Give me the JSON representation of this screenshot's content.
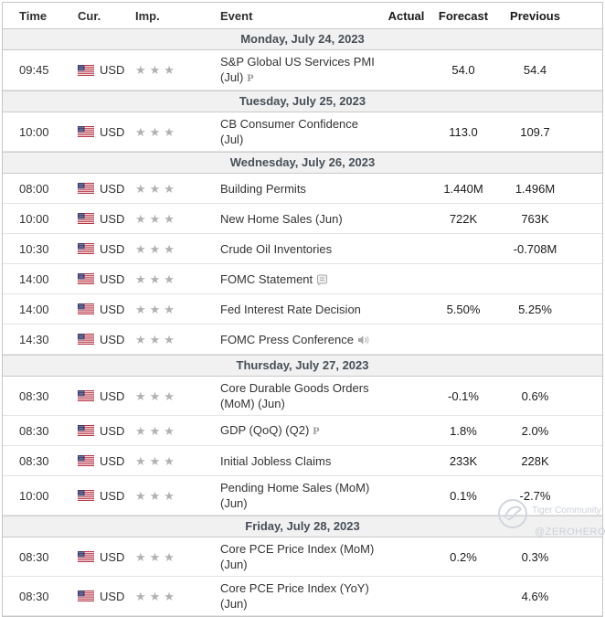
{
  "table": {
    "columns": {
      "time": "Time",
      "currency": "Cur.",
      "importance": "Imp.",
      "event": "Event",
      "actual": "Actual",
      "forecast": "Forecast",
      "previous": "Previous"
    },
    "days": [
      {
        "date": "Monday, July 24, 2023",
        "events": [
          {
            "time": "09:45",
            "currency": "USD",
            "flag": "us-flag-icon",
            "importance": 3,
            "event": "S&P Global US Services PMI (Jul)",
            "marker": "preliminary",
            "actual": "",
            "forecast": "54.0",
            "previous": "54.4"
          }
        ]
      },
      {
        "date": "Tuesday, July 25, 2023",
        "events": [
          {
            "time": "10:00",
            "currency": "USD",
            "flag": "us-flag-icon",
            "importance": 3,
            "event": "CB Consumer Confidence (Jul)",
            "marker": null,
            "actual": "",
            "forecast": "113.0",
            "previous": "109.7"
          }
        ]
      },
      {
        "date": "Wednesday, July 26, 2023",
        "events": [
          {
            "time": "08:00",
            "currency": "USD",
            "flag": "us-flag-icon",
            "importance": 3,
            "event": "Building Permits",
            "marker": null,
            "actual": "",
            "forecast": "1.440M",
            "previous": "1.496M"
          },
          {
            "time": "10:00",
            "currency": "USD",
            "flag": "us-flag-icon",
            "importance": 3,
            "event": "New Home Sales (Jun)",
            "marker": null,
            "actual": "",
            "forecast": "722K",
            "previous": "763K"
          },
          {
            "time": "10:30",
            "currency": "USD",
            "flag": "us-flag-icon",
            "importance": 3,
            "event": "Crude Oil Inventories",
            "marker": null,
            "actual": "",
            "forecast": "",
            "previous": "-0.708M"
          },
          {
            "time": "14:00",
            "currency": "USD",
            "flag": "us-flag-icon",
            "importance": 3,
            "event": "FOMC Statement",
            "marker": "report",
            "actual": "",
            "forecast": "",
            "previous": ""
          },
          {
            "time": "14:00",
            "currency": "USD",
            "flag": "us-flag-icon",
            "importance": 3,
            "event": "Fed Interest Rate Decision",
            "marker": null,
            "actual": "",
            "forecast": "5.50%",
            "previous": "5.25%"
          },
          {
            "time": "14:30",
            "currency": "USD",
            "flag": "us-flag-icon",
            "importance": 3,
            "event": "FOMC Press Conference",
            "marker": "audio",
            "actual": "",
            "forecast": "",
            "previous": ""
          }
        ]
      },
      {
        "date": "Thursday, July 27, 2023",
        "events": [
          {
            "time": "08:30",
            "currency": "USD",
            "flag": "us-flag-icon",
            "importance": 3,
            "event": "Core Durable Goods Orders (MoM) (Jun)",
            "marker": null,
            "actual": "",
            "forecast": "-0.1%",
            "previous": "0.6%"
          },
          {
            "time": "08:30",
            "currency": "USD",
            "flag": "us-flag-icon",
            "importance": 3,
            "event": "GDP (QoQ) (Q2)",
            "marker": "preliminary",
            "actual": "",
            "forecast": "1.8%",
            "previous": "2.0%"
          },
          {
            "time": "08:30",
            "currency": "USD",
            "flag": "us-flag-icon",
            "importance": 3,
            "event": "Initial Jobless Claims",
            "marker": null,
            "actual": "",
            "forecast": "233K",
            "previous": "228K"
          },
          {
            "time": "10:00",
            "currency": "USD",
            "flag": "us-flag-icon",
            "importance": 3,
            "event": "Pending Home Sales (MoM) (Jun)",
            "marker": null,
            "actual": "",
            "forecast": "0.1%",
            "previous": "-2.7%"
          }
        ]
      },
      {
        "date": "Friday, July 28, 2023",
        "events": [
          {
            "time": "08:30",
            "currency": "USD",
            "flag": "us-flag-icon",
            "importance": 3,
            "event": "Core PCE Price Index (MoM) (Jun)",
            "marker": null,
            "actual": "",
            "forecast": "0.2%",
            "previous": "0.3%"
          },
          {
            "time": "08:30",
            "currency": "USD",
            "flag": "us-flag-icon",
            "importance": 3,
            "event": "Core PCE Price Index (YoY) (Jun)",
            "marker": null,
            "actual": "",
            "forecast": "",
            "previous": "4.6%"
          }
        ]
      }
    ]
  },
  "watermark": {
    "line1": "Tiger Community",
    "line2": "@ZEROHERO",
    "icon": "tiger-logo-icon"
  },
  "colors": {
    "date_row_bg": "#f1f1f1",
    "table_border": "#c6c6c6",
    "row_divider": "#e4e4e4",
    "star": "#b1b1b1",
    "text": "#333333",
    "date_text": "#464f58",
    "watermark": "#ccd0d9"
  },
  "icons": {
    "star": "★",
    "preliminary": "P"
  }
}
